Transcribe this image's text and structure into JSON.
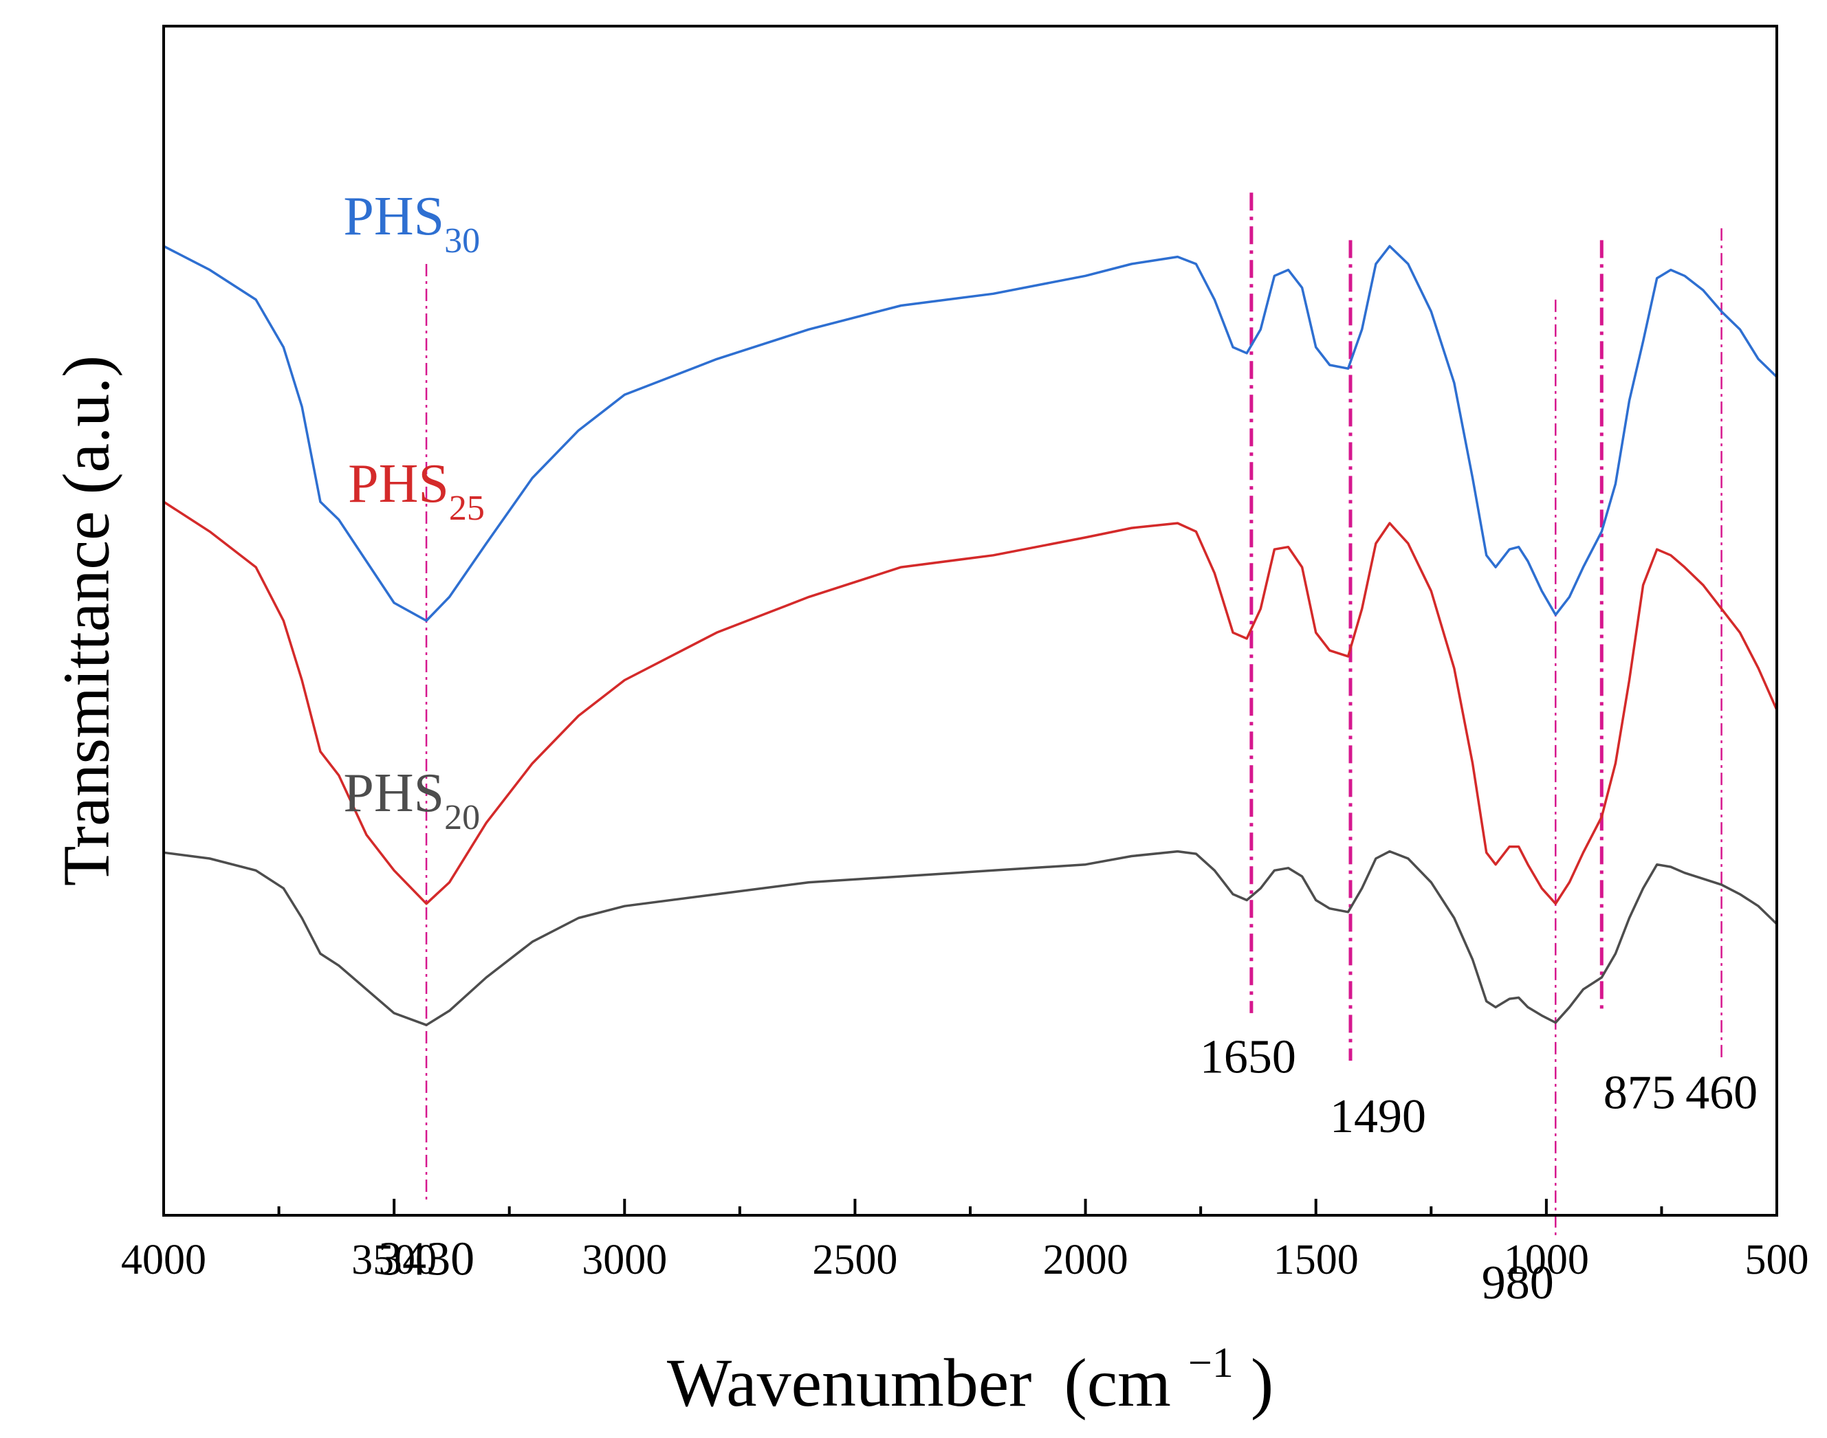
{
  "chart_data": {
    "type": "line",
    "title": "",
    "xlabel": "Wavenumber",
    "xlabel_unit_open": "(cm",
    "xlabel_unit_sup": "−1",
    "xlabel_unit_close": ")",
    "ylabel": "Transmittance (a.u.)",
    "xlim": [
      4000,
      500
    ],
    "x_reversed": true,
    "x_ticks": [
      "4000",
      "3500",
      "3000",
      "2500",
      "2000",
      "1500",
      "1000",
      "500"
    ],
    "y_ticks": [],
    "grid": false,
    "series": [
      {
        "name": "PHS30",
        "label_main": "PHS",
        "label_sub": "30",
        "color": "#2e6fd1",
        "points": [
          [
            4000,
            0.815
          ],
          [
            3900,
            0.795
          ],
          [
            3800,
            0.77
          ],
          [
            3740,
            0.73
          ],
          [
            3700,
            0.68
          ],
          [
            3660,
            0.6
          ],
          [
            3620,
            0.585
          ],
          [
            3560,
            0.55
          ],
          [
            3500,
            0.515
          ],
          [
            3430,
            0.5
          ],
          [
            3380,
            0.52
          ],
          [
            3300,
            0.565
          ],
          [
            3200,
            0.62
          ],
          [
            3100,
            0.66
          ],
          [
            3000,
            0.69
          ],
          [
            2800,
            0.72
          ],
          [
            2600,
            0.745
          ],
          [
            2400,
            0.765
          ],
          [
            2200,
            0.775
          ],
          [
            2000,
            0.79
          ],
          [
            1900,
            0.8
          ],
          [
            1800,
            0.806
          ],
          [
            1760,
            0.8
          ],
          [
            1720,
            0.77
          ],
          [
            1680,
            0.73
          ],
          [
            1650,
            0.725
          ],
          [
            1620,
            0.745
          ],
          [
            1590,
            0.79
          ],
          [
            1560,
            0.795
          ],
          [
            1530,
            0.78
          ],
          [
            1500,
            0.73
          ],
          [
            1470,
            0.715
          ],
          [
            1430,
            0.712
          ],
          [
            1400,
            0.745
          ],
          [
            1370,
            0.8
          ],
          [
            1340,
            0.815
          ],
          [
            1300,
            0.8
          ],
          [
            1250,
            0.76
          ],
          [
            1200,
            0.7
          ],
          [
            1160,
            0.62
          ],
          [
            1130,
            0.555
          ],
          [
            1110,
            0.545
          ],
          [
            1080,
            0.56
          ],
          [
            1060,
            0.562
          ],
          [
            1040,
            0.55
          ],
          [
            1010,
            0.525
          ],
          [
            980,
            0.505
          ],
          [
            950,
            0.52
          ],
          [
            920,
            0.545
          ],
          [
            880,
            0.575
          ],
          [
            850,
            0.615
          ],
          [
            820,
            0.685
          ],
          [
            790,
            0.735
          ],
          [
            760,
            0.788
          ],
          [
            730,
            0.795
          ],
          [
            700,
            0.79
          ],
          [
            660,
            0.778
          ],
          [
            620,
            0.76
          ],
          [
            580,
            0.745
          ],
          [
            540,
            0.72
          ],
          [
            500,
            0.705
          ]
        ]
      },
      {
        "name": "PHS25",
        "label_main": "PHS",
        "label_sub": "25",
        "color": "#d42a2a",
        "points": [
          [
            4000,
            0.6
          ],
          [
            3900,
            0.575
          ],
          [
            3800,
            0.545
          ],
          [
            3740,
            0.5
          ],
          [
            3700,
            0.45
          ],
          [
            3660,
            0.39
          ],
          [
            3620,
            0.37
          ],
          [
            3560,
            0.32
          ],
          [
            3500,
            0.29
          ],
          [
            3430,
            0.262
          ],
          [
            3380,
            0.28
          ],
          [
            3300,
            0.33
          ],
          [
            3200,
            0.38
          ],
          [
            3100,
            0.42
          ],
          [
            3000,
            0.45
          ],
          [
            2800,
            0.49
          ],
          [
            2600,
            0.52
          ],
          [
            2400,
            0.545
          ],
          [
            2200,
            0.555
          ],
          [
            2000,
            0.57
          ],
          [
            1900,
            0.578
          ],
          [
            1800,
            0.582
          ],
          [
            1760,
            0.575
          ],
          [
            1720,
            0.54
          ],
          [
            1680,
            0.49
          ],
          [
            1650,
            0.485
          ],
          [
            1620,
            0.51
          ],
          [
            1590,
            0.56
          ],
          [
            1560,
            0.562
          ],
          [
            1530,
            0.545
          ],
          [
            1500,
            0.49
          ],
          [
            1470,
            0.475
          ],
          [
            1430,
            0.47
          ],
          [
            1400,
            0.51
          ],
          [
            1370,
            0.565
          ],
          [
            1340,
            0.582
          ],
          [
            1300,
            0.565
          ],
          [
            1250,
            0.525
          ],
          [
            1200,
            0.46
          ],
          [
            1160,
            0.38
          ],
          [
            1130,
            0.305
          ],
          [
            1110,
            0.295
          ],
          [
            1080,
            0.31
          ],
          [
            1060,
            0.31
          ],
          [
            1040,
            0.295
          ],
          [
            1010,
            0.275
          ],
          [
            980,
            0.262
          ],
          [
            950,
            0.28
          ],
          [
            920,
            0.305
          ],
          [
            880,
            0.335
          ],
          [
            850,
            0.38
          ],
          [
            820,
            0.45
          ],
          [
            790,
            0.53
          ],
          [
            760,
            0.56
          ],
          [
            730,
            0.555
          ],
          [
            700,
            0.545
          ],
          [
            660,
            0.53
          ],
          [
            620,
            0.51
          ],
          [
            580,
            0.49
          ],
          [
            540,
            0.46
          ],
          [
            500,
            0.425
          ]
        ]
      },
      {
        "name": "PHS20",
        "label_main": "PHS",
        "label_sub": "20",
        "color": "#4d4d4d",
        "points": [
          [
            4000,
            0.305
          ],
          [
            3900,
            0.3
          ],
          [
            3800,
            0.29
          ],
          [
            3740,
            0.275
          ],
          [
            3700,
            0.25
          ],
          [
            3660,
            0.22
          ],
          [
            3620,
            0.21
          ],
          [
            3560,
            0.19
          ],
          [
            3500,
            0.17
          ],
          [
            3430,
            0.16
          ],
          [
            3380,
            0.172
          ],
          [
            3300,
            0.2
          ],
          [
            3200,
            0.23
          ],
          [
            3100,
            0.25
          ],
          [
            3000,
            0.26
          ],
          [
            2800,
            0.27
          ],
          [
            2600,
            0.28
          ],
          [
            2400,
            0.285
          ],
          [
            2200,
            0.29
          ],
          [
            2000,
            0.295
          ],
          [
            1900,
            0.302
          ],
          [
            1800,
            0.306
          ],
          [
            1760,
            0.304
          ],
          [
            1720,
            0.29
          ],
          [
            1680,
            0.27
          ],
          [
            1650,
            0.265
          ],
          [
            1620,
            0.275
          ],
          [
            1590,
            0.29
          ],
          [
            1560,
            0.292
          ],
          [
            1530,
            0.285
          ],
          [
            1500,
            0.265
          ],
          [
            1470,
            0.258
          ],
          [
            1430,
            0.255
          ],
          [
            1400,
            0.275
          ],
          [
            1370,
            0.3
          ],
          [
            1340,
            0.306
          ],
          [
            1300,
            0.3
          ],
          [
            1250,
            0.28
          ],
          [
            1200,
            0.25
          ],
          [
            1160,
            0.215
          ],
          [
            1130,
            0.18
          ],
          [
            1110,
            0.175
          ],
          [
            1080,
            0.182
          ],
          [
            1060,
            0.183
          ],
          [
            1040,
            0.175
          ],
          [
            1010,
            0.168
          ],
          [
            980,
            0.162
          ],
          [
            950,
            0.175
          ],
          [
            920,
            0.19
          ],
          [
            880,
            0.2
          ],
          [
            850,
            0.22
          ],
          [
            820,
            0.25
          ],
          [
            790,
            0.275
          ],
          [
            760,
            0.295
          ],
          [
            730,
            0.293
          ],
          [
            700,
            0.288
          ],
          [
            660,
            0.283
          ],
          [
            620,
            0.278
          ],
          [
            580,
            0.27
          ],
          [
            540,
            0.26
          ],
          [
            500,
            0.245
          ]
        ]
      }
    ],
    "annotations": [
      {
        "label": "3430",
        "x": 3430,
        "line_top": 0.8,
        "line_bottom": 0.01,
        "text_y": -0.05,
        "text_dx": 0,
        "dash": "dashdot",
        "weight": "thin"
      },
      {
        "label": "1650",
        "x": 1640,
        "line_top": 0.86,
        "line_bottom": 0.17,
        "text_y": 0.12,
        "text_dx": -5,
        "dash": "dashdot",
        "weight": "thick"
      },
      {
        "label": "1490",
        "x": 1425,
        "line_top": 0.82,
        "line_bottom": 0.13,
        "text_y": 0.07,
        "text_dx": 40,
        "dash": "dashdot",
        "weight": "thick"
      },
      {
        "label": "980",
        "x": 980,
        "line_top": 0.77,
        "line_bottom": -0.02,
        "text_y": -0.07,
        "text_dx": -55,
        "dash": "dashdot",
        "weight": "thin"
      },
      {
        "label": "875",
        "x": 880,
        "line_top": 0.82,
        "line_bottom": 0.17,
        "text_y": 0.09,
        "text_dx": 55,
        "dash": "dashdot",
        "weight": "thick"
      },
      {
        "label": "460",
        "x": 620,
        "line_top": 0.83,
        "line_bottom": 0.13,
        "text_y": 0.09,
        "text_dx": 0,
        "dash": "dashdot",
        "weight": "thin"
      }
    ],
    "series_labels": [
      {
        "series": 0,
        "x": 3610,
        "y": 0.825
      },
      {
        "series": 1,
        "x": 3600,
        "y": 0.6
      },
      {
        "series": 2,
        "x": 3610,
        "y": 0.34
      }
    ],
    "annotation_color": "#d6178e"
  }
}
